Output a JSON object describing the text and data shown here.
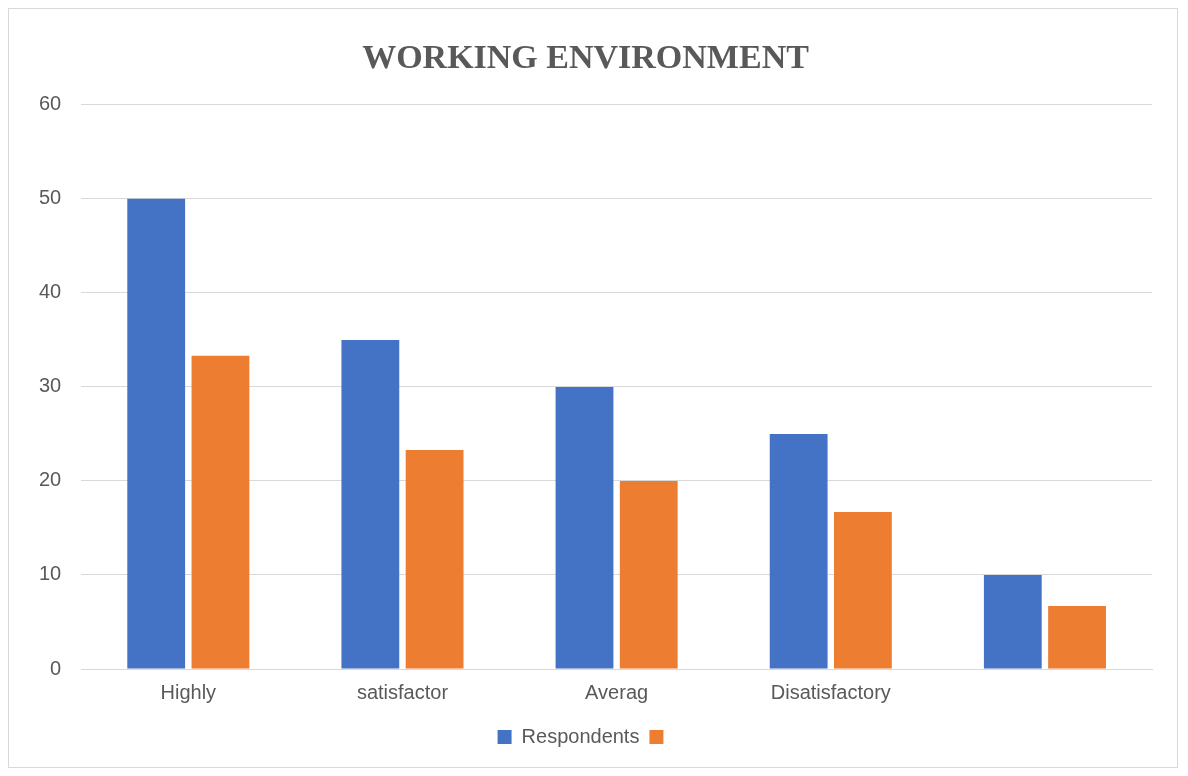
{
  "chart_data": {
    "type": "bar",
    "title": "WORKING ENVIRONMENT",
    "categories": [
      "Highly",
      "satisfactor",
      "Averag",
      "Disatisfactory",
      null
    ],
    "series": [
      {
        "name": "Respondents",
        "color": "#4472c4",
        "values": [
          50,
          35,
          30,
          25,
          10
        ]
      },
      {
        "color": "#ed7d31",
        "values": [
          33.3,
          23.3,
          20,
          16.7,
          6.7
        ]
      }
    ],
    "ylim": [
      0,
      60
    ],
    "yticks": [
      0,
      10,
      20,
      30,
      40,
      50,
      60
    ],
    "grid": "y",
    "legend": "bottom"
  }
}
